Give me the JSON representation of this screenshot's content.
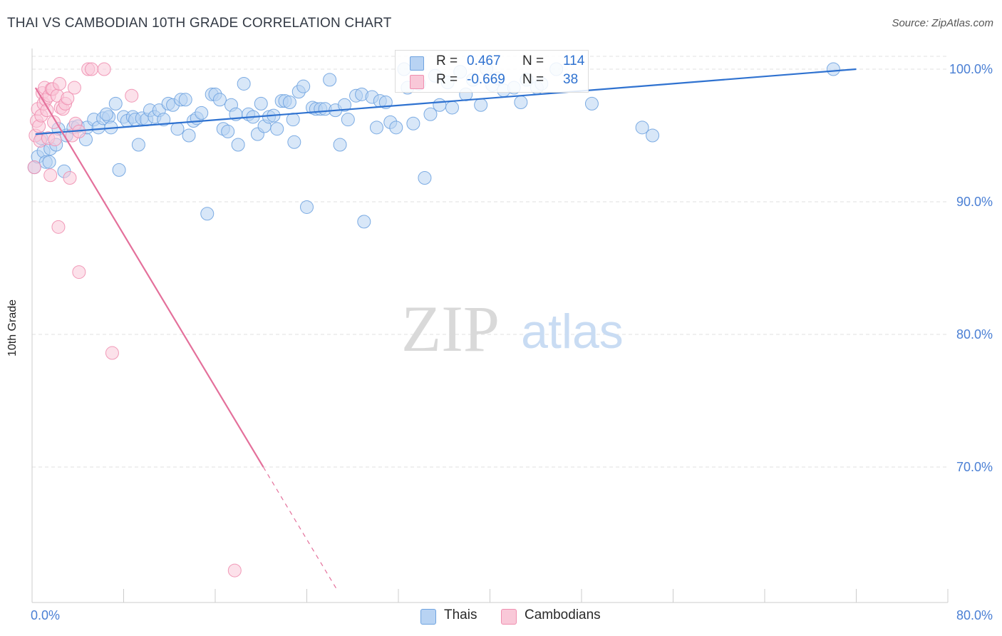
{
  "header": {
    "title": "THAI VS CAMBODIAN 10TH GRADE CORRELATION CHART",
    "source": "Source: ZipAtlas.com"
  },
  "colors": {
    "blue": "#6fa3e0",
    "blue_fill": "#b8d3f3",
    "blue_line": "#2f72d0",
    "pink": "#f08fb0",
    "pink_fill": "#f9c8d8",
    "pink_line": "#e4709b",
    "axis_text": "#4a7fd4",
    "grid": "#dddddd"
  },
  "legend": {
    "thais": {
      "r_label": "R =",
      "r_value": "0.467",
      "n_label": "N =",
      "n_value": "114"
    },
    "cambodians": {
      "r_label": "R =",
      "r_value": "-0.669",
      "n_label": "N =",
      "n_value": "38"
    }
  },
  "bottom_legend": {
    "thais": "Thais",
    "cambodians": "Cambodians"
  },
  "watermark": {
    "zip": "ZIP",
    "atlas": "atlas"
  },
  "chart_data": {
    "type": "scatter",
    "title": "THAI VS CAMBODIAN 10TH GRADE CORRELATION CHART",
    "xlabel": "",
    "ylabel": "10th Grade",
    "xlim": [
      0,
      80
    ],
    "ylim": [
      59,
      101
    ],
    "x_tick_labels": [
      "0.0%",
      "80.0%"
    ],
    "y_ticks": [
      {
        "value": 100,
        "label": "100.0%"
      },
      {
        "value": 90,
        "label": "90.0%"
      },
      {
        "value": 80,
        "label": "80.0%"
      },
      {
        "value": 70,
        "label": "70.0%"
      }
    ],
    "grid": true,
    "legend_position": "top-center",
    "series": [
      {
        "name": "Thais",
        "color": "#6fa3e0",
        "r": 0.467,
        "n": 114,
        "trendline": {
          "x": [
            0.3,
            72
          ],
          "y": [
            95.1,
            100.0
          ],
          "dashed_x": null
        },
        "points": [
          [
            0.2,
            92.6
          ],
          [
            0.5,
            93.4
          ],
          [
            1.0,
            93.8
          ],
          [
            1.2,
            93.0
          ],
          [
            1.6,
            94.0
          ],
          [
            2.1,
            94.3
          ],
          [
            2.3,
            95.5
          ],
          [
            2.8,
            92.3
          ],
          [
            3.0,
            95.0
          ],
          [
            3.6,
            95.6
          ],
          [
            4.0,
            95.7
          ],
          [
            4.7,
            94.7
          ],
          [
            4.8,
            95.6
          ],
          [
            5.4,
            96.2
          ],
          [
            5.8,
            95.6
          ],
          [
            6.2,
            96.3
          ],
          [
            6.7,
            96.4
          ],
          [
            6.9,
            95.6
          ],
          [
            7.3,
            97.4
          ],
          [
            7.6,
            92.4
          ],
          [
            8.0,
            96.4
          ],
          [
            8.3,
            96.1
          ],
          [
            8.8,
            96.4
          ],
          [
            9.0,
            96.2
          ],
          [
            9.3,
            94.3
          ],
          [
            9.6,
            96.3
          ],
          [
            10.0,
            96.2
          ],
          [
            10.3,
            96.9
          ],
          [
            10.7,
            96.4
          ],
          [
            11.1,
            96.9
          ],
          [
            11.5,
            96.2
          ],
          [
            11.9,
            97.4
          ],
          [
            12.3,
            97.3
          ],
          [
            12.7,
            95.5
          ],
          [
            13.0,
            97.7
          ],
          [
            13.4,
            97.7
          ],
          [
            13.7,
            95.0
          ],
          [
            14.1,
            96.1
          ],
          [
            14.4,
            96.3
          ],
          [
            14.8,
            96.7
          ],
          [
            15.3,
            89.1
          ],
          [
            15.7,
            98.1
          ],
          [
            16.0,
            98.1
          ],
          [
            16.4,
            97.7
          ],
          [
            16.7,
            95.5
          ],
          [
            17.1,
            95.3
          ],
          [
            17.4,
            97.3
          ],
          [
            17.8,
            96.6
          ],
          [
            18.0,
            94.3
          ],
          [
            18.5,
            98.9
          ],
          [
            18.9,
            96.6
          ],
          [
            19.3,
            96.4
          ],
          [
            19.7,
            95.1
          ],
          [
            20.0,
            97.4
          ],
          [
            20.3,
            95.7
          ],
          [
            20.7,
            96.4
          ],
          [
            21.1,
            96.5
          ],
          [
            21.4,
            95.5
          ],
          [
            21.8,
            97.6
          ],
          [
            22.1,
            97.6
          ],
          [
            22.5,
            97.5
          ],
          [
            22.8,
            96.2
          ],
          [
            22.9,
            94.5
          ],
          [
            23.3,
            98.3
          ],
          [
            23.7,
            98.7
          ],
          [
            24.0,
            89.6
          ],
          [
            24.5,
            97.1
          ],
          [
            24.8,
            97.0
          ],
          [
            25.2,
            97.0
          ],
          [
            25.6,
            97.0
          ],
          [
            26.0,
            99.2
          ],
          [
            26.5,
            96.9
          ],
          [
            26.9,
            94.3
          ],
          [
            27.3,
            97.3
          ],
          [
            27.6,
            96.2
          ],
          [
            28.3,
            98.0
          ],
          [
            28.8,
            98.1
          ],
          [
            29.0,
            88.5
          ],
          [
            29.7,
            97.9
          ],
          [
            30.1,
            95.6
          ],
          [
            30.4,
            97.6
          ],
          [
            30.9,
            97.5
          ],
          [
            31.3,
            96.0
          ],
          [
            31.8,
            95.6
          ],
          [
            32.5,
            100.0
          ],
          [
            32.8,
            98.6
          ],
          [
            33.3,
            95.9
          ],
          [
            33.8,
            98.9
          ],
          [
            34.3,
            91.8
          ],
          [
            34.8,
            96.6
          ],
          [
            35.2,
            99.5
          ],
          [
            35.6,
            97.3
          ],
          [
            36.3,
            99.0
          ],
          [
            36.7,
            97.1
          ],
          [
            37.4,
            99.8
          ],
          [
            37.9,
            98.1
          ],
          [
            38.5,
            99.2
          ],
          [
            39.2,
            97.3
          ],
          [
            39.7,
            100.0
          ],
          [
            40.2,
            98.8
          ],
          [
            40.7,
            99.3
          ],
          [
            41.2,
            98.4
          ],
          [
            42.1,
            98.6
          ],
          [
            42.7,
            97.5
          ],
          [
            43.2,
            99.2
          ],
          [
            44.1,
            98.6
          ],
          [
            44.5,
            98.9
          ],
          [
            45.8,
            100.0
          ],
          [
            48.9,
            97.4
          ],
          [
            53.3,
            95.6
          ],
          [
            54.2,
            95.0
          ],
          [
            70.0,
            100.0
          ],
          [
            1.5,
            93.0
          ],
          [
            0.8,
            94.8
          ],
          [
            6.5,
            96.6
          ]
        ]
      },
      {
        "name": "Cambodians",
        "color": "#f08fb0",
        "r": -0.669,
        "n": 38,
        "trendline": {
          "x": [
            0.3,
            20.2
          ],
          "y": [
            98.6,
            70.0
          ],
          "dashed_x": [
            20.2,
            26.7
          ]
        },
        "points": [
          [
            0.2,
            92.6
          ],
          [
            0.3,
            95.0
          ],
          [
            0.4,
            96.1
          ],
          [
            0.5,
            97.0
          ],
          [
            0.6,
            95.7
          ],
          [
            0.7,
            94.6
          ],
          [
            0.8,
            96.5
          ],
          [
            0.9,
            98.2
          ],
          [
            1.0,
            97.4
          ],
          [
            1.1,
            98.6
          ],
          [
            1.2,
            97.7
          ],
          [
            1.3,
            96.9
          ],
          [
            1.4,
            94.8
          ],
          [
            1.5,
            98.0
          ],
          [
            1.6,
            92.0
          ],
          [
            1.7,
            98.5
          ],
          [
            1.8,
            98.5
          ],
          [
            1.9,
            96.0
          ],
          [
            2.0,
            94.7
          ],
          [
            2.2,
            98.0
          ],
          [
            2.4,
            98.9
          ],
          [
            2.5,
            97.1
          ],
          [
            2.7,
            97.0
          ],
          [
            2.9,
            97.4
          ],
          [
            3.1,
            97.8
          ],
          [
            3.3,
            91.8
          ],
          [
            3.5,
            95.0
          ],
          [
            3.7,
            98.6
          ],
          [
            3.8,
            95.9
          ],
          [
            4.1,
            95.3
          ],
          [
            4.9,
            100.0
          ],
          [
            5.2,
            100.0
          ],
          [
            6.3,
            100.0
          ],
          [
            7.0,
            78.6
          ],
          [
            8.7,
            98.0
          ],
          [
            2.3,
            88.1
          ],
          [
            4.1,
            84.7
          ],
          [
            17.7,
            62.2
          ]
        ]
      }
    ]
  }
}
